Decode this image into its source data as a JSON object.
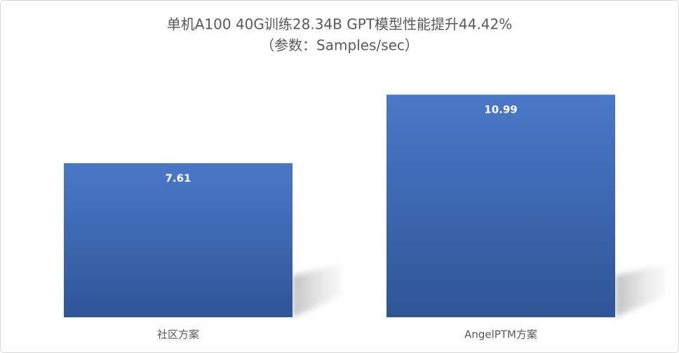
{
  "chart_data": {
    "type": "bar",
    "title": "单机A100 40G训练28.34B GPT模型性能提升44.42%",
    "subtitle": "（参数：Samples/sec）",
    "categories": [
      "社区方案",
      "AngelPTM方案"
    ],
    "values": [
      7.61,
      10.99
    ],
    "color": "#4472c4",
    "ylim": [
      0,
      12
    ],
    "grid": false
  }
}
